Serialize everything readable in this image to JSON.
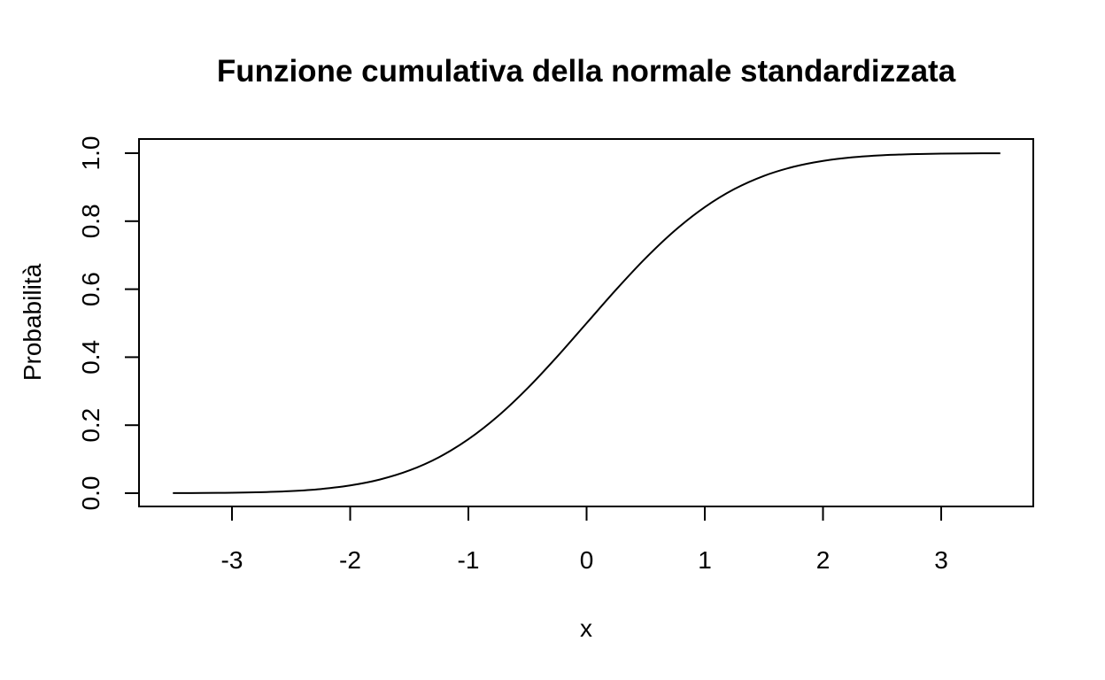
{
  "chart_data": {
    "type": "line",
    "title": "Funzione cumulativa della normale standardizzata",
    "xlabel": "x",
    "ylabel": "Probabilità",
    "xlim": [
      -3.5,
      3.5
    ],
    "ylim": [
      0,
      1
    ],
    "x_ticks": [
      -3,
      -2,
      -1,
      0,
      1,
      2,
      3
    ],
    "x_tick_labels": [
      "-3",
      "-2",
      "-1",
      "0",
      "1",
      "2",
      "3"
    ],
    "y_ticks": [
      0,
      0.2,
      0.4,
      0.6,
      0.8,
      1.0
    ],
    "y_tick_labels": [
      "0.0",
      "0.2",
      "0.4",
      "0.6",
      "0.8",
      "1.0"
    ],
    "grid": false,
    "legend": "none",
    "line_color": "#000000",
    "series": [
      {
        "x": [
          -3.5,
          -3.25,
          -3.0,
          -2.75,
          -2.5,
          -2.25,
          -2.0,
          -1.75,
          -1.5,
          -1.25,
          -1.0,
          -0.75,
          -0.5,
          -0.25,
          0.0,
          0.25,
          0.5,
          0.75,
          1.0,
          1.25,
          1.5,
          1.75,
          2.0,
          2.25,
          2.5,
          2.75,
          3.0,
          3.25,
          3.5
        ],
        "values": [
          0.0002,
          0.0006,
          0.0013,
          0.003,
          0.0062,
          0.0122,
          0.0228,
          0.0401,
          0.0668,
          0.1056,
          0.1587,
          0.2266,
          0.3085,
          0.4013,
          0.5,
          0.5987,
          0.6915,
          0.7734,
          0.8413,
          0.8944,
          0.9332,
          0.9599,
          0.9772,
          0.9878,
          0.9938,
          0.997,
          0.9987,
          0.9994,
          0.9998
        ]
      }
    ]
  }
}
